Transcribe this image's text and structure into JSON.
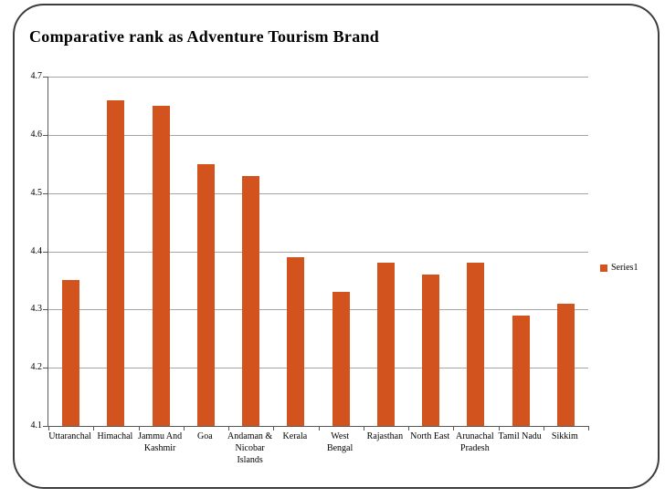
{
  "chart_data": {
    "type": "bar",
    "title": "Comparative rank as Adventure Tourism Brand",
    "categories": [
      "Uttaranchal",
      "Himachal",
      "Jammu And Kashmir",
      "Goa",
      "Andaman & Nicobar Islands",
      "Kerala",
      "West Bengal",
      "Rajasthan",
      "North East",
      "Arunachal Pradesh",
      "Tamil Nadu",
      "Sikkim"
    ],
    "category_label_lines": [
      [
        "Uttaranchal"
      ],
      [
        "Himachal"
      ],
      [
        "Jammu And",
        "Kashmir"
      ],
      [
        "Goa"
      ],
      [
        "Andaman &",
        "Nicobar",
        "Islands"
      ],
      [
        "Kerala"
      ],
      [
        "West Bengal"
      ],
      [
        "Rajasthan"
      ],
      [
        "North East"
      ],
      [
        "Arunachal",
        "Pradesh"
      ],
      [
        "Tamil Nadu"
      ],
      [
        "Sikkim"
      ]
    ],
    "series": [
      {
        "name": "Series1",
        "values": [
          4.35,
          4.66,
          4.65,
          4.55,
          4.53,
          4.39,
          4.33,
          4.38,
          4.36,
          4.38,
          4.29,
          4.31
        ]
      }
    ],
    "xlabel": "",
    "ylabel": "",
    "ylim": [
      4.1,
      4.7
    ],
    "y_ticks": [
      "4.7",
      "4.6",
      "4.5",
      "4.4",
      "4.3",
      "4.2",
      "4.1"
    ],
    "grid": true,
    "legend_position": "right",
    "colors": {
      "bar": "#D2531E",
      "gridline": "#A6A6A6",
      "axis": "#595959",
      "text": "#000000",
      "slide_border": "#3D3D3D"
    }
  }
}
